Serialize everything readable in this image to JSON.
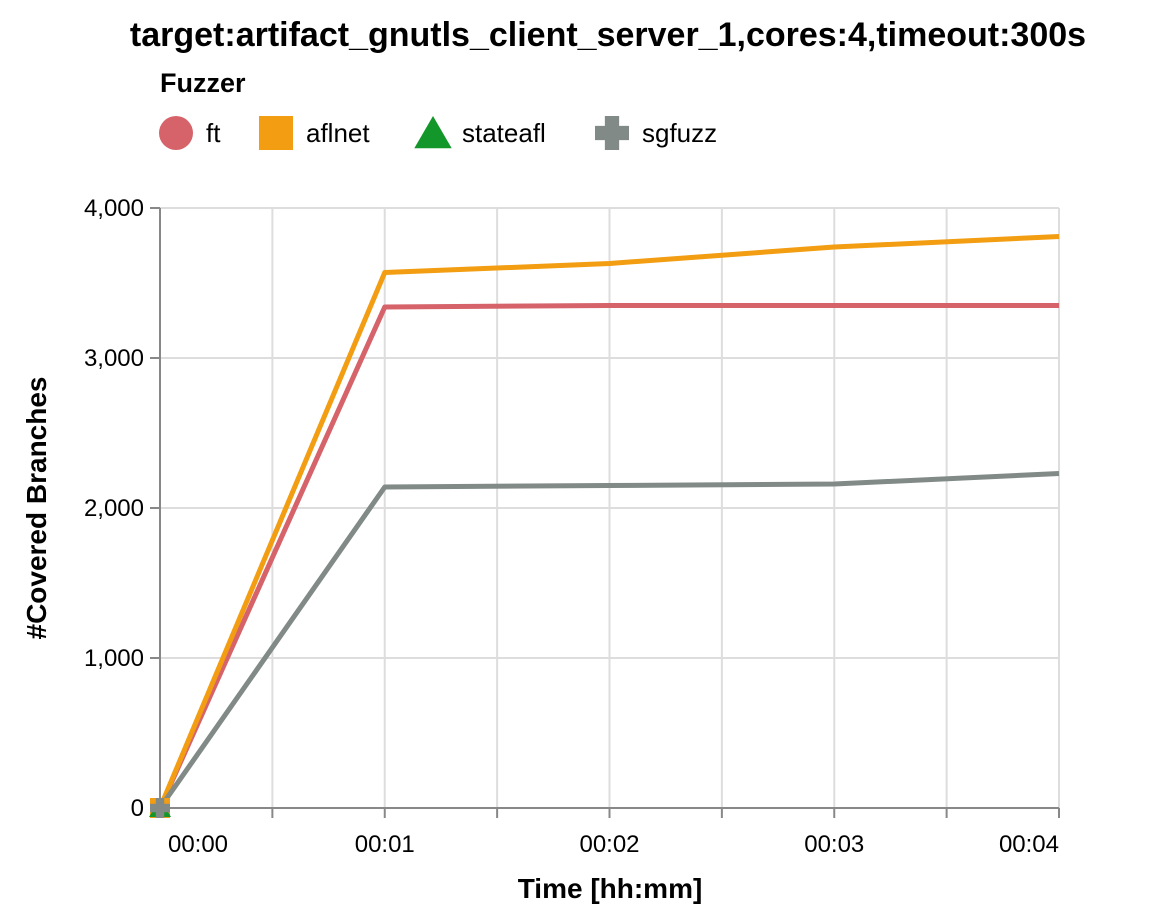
{
  "chart_data": {
    "type": "line",
    "title": "target:artifact_gnutls_client_server_1,cores:4,timeout:300s",
    "xlabel": "Time [hh:mm]",
    "ylabel": "#Covered Branches",
    "legend_title": "Fuzzer",
    "legend_position": "top-left",
    "grid": true,
    "xlim": [
      0,
      4
    ],
    "ylim": [
      0,
      4000
    ],
    "x_ticks": [
      {
        "value": 0,
        "label": "00:00"
      },
      {
        "value": 1,
        "label": "00:01"
      },
      {
        "value": 2,
        "label": "00:02"
      },
      {
        "value": 3,
        "label": "00:03"
      },
      {
        "value": 4,
        "label": "00:04"
      }
    ],
    "x_minor_ticks": [
      0.5,
      1.5,
      2.5,
      3.5
    ],
    "y_ticks": [
      {
        "value": 0,
        "label": "0"
      },
      {
        "value": 1000,
        "label": "1,000"
      },
      {
        "value": 2000,
        "label": "2,000"
      },
      {
        "value": 3000,
        "label": "3,000"
      },
      {
        "value": 4000,
        "label": "4,000"
      }
    ],
    "series": [
      {
        "name": "ft",
        "color": "#d6636a",
        "marker": "circle",
        "points": [
          [
            0,
            0
          ],
          [
            1,
            3340
          ],
          [
            2,
            3350
          ],
          [
            3,
            3350
          ],
          [
            4,
            3350
          ]
        ]
      },
      {
        "name": "aflnet",
        "color": "#f29d12",
        "marker": "square",
        "points": [
          [
            0,
            0
          ],
          [
            1,
            3570
          ],
          [
            2,
            3630
          ],
          [
            3,
            3740
          ],
          [
            4,
            3810
          ]
        ]
      },
      {
        "name": "stateafl",
        "color": "#13972a",
        "marker": "triangle",
        "points": [
          [
            0,
            0
          ]
        ]
      },
      {
        "name": "sgfuzz",
        "color": "#818a86",
        "marker": "cross",
        "points": [
          [
            0,
            0
          ],
          [
            1,
            2140
          ],
          [
            2,
            2150
          ],
          [
            3,
            2160
          ],
          [
            4,
            2230
          ]
        ]
      }
    ]
  }
}
